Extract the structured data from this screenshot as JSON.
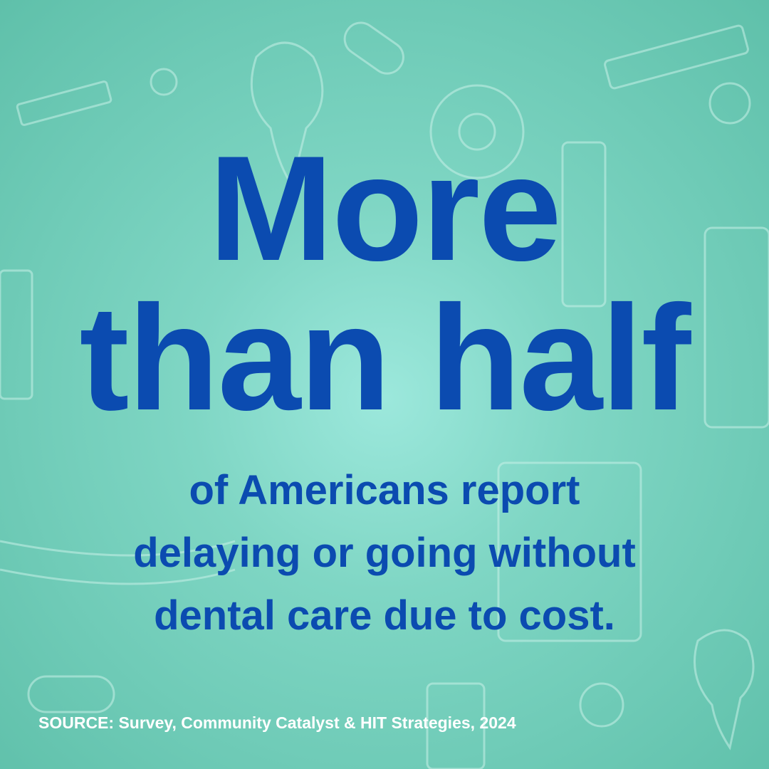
{
  "headline": {
    "line1": "More",
    "line2": "than half"
  },
  "body": [
    "of Americans report",
    "delaying or going without",
    "dental care due to cost."
  ],
  "source": "SOURCE: Survey, Community Catalyst & HIT Strategies, 2024"
}
